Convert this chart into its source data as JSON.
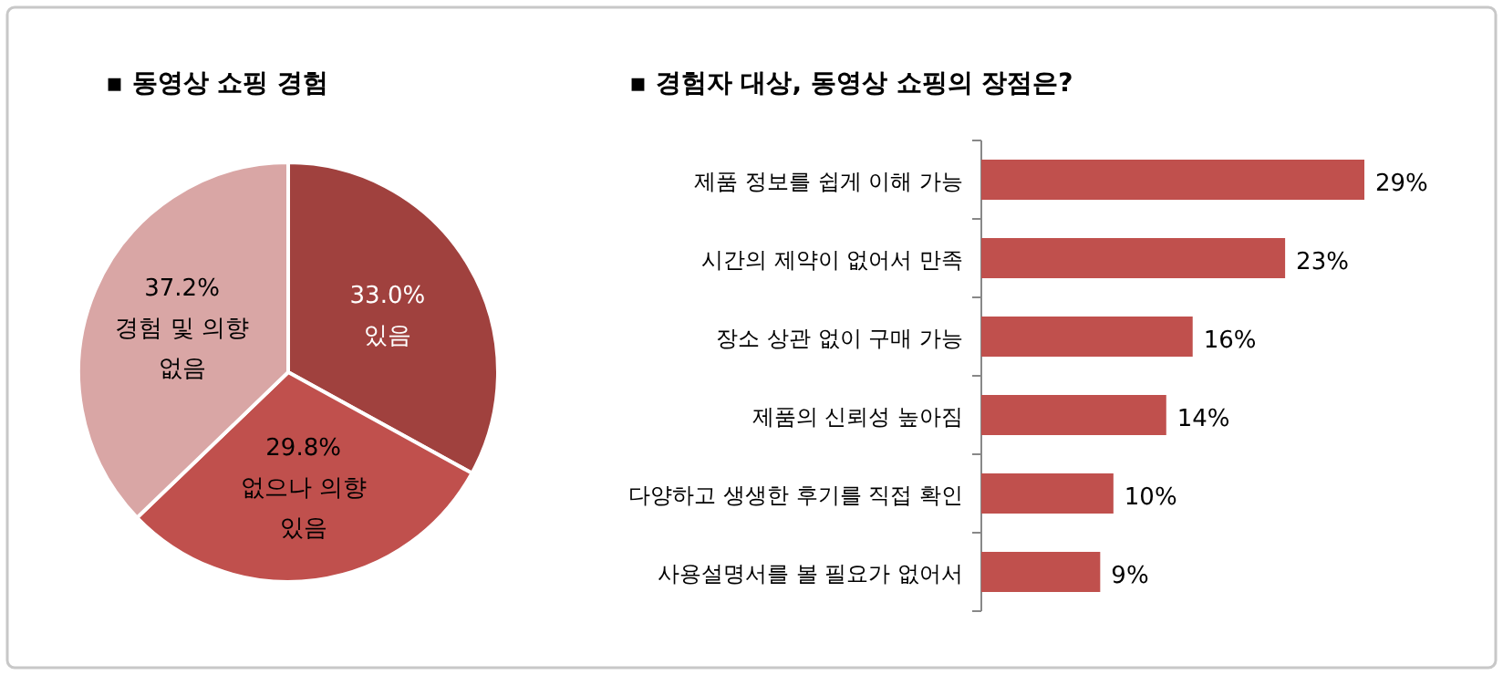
{
  "chart_data": [
    {
      "type": "pie",
      "title": "▪   동영상 쇼핑 경험",
      "categories": [
        "있음",
        "없으나 의향 있음",
        "경험 및 의향 없음"
      ],
      "values": [
        33.0,
        29.8,
        37.2
      ],
      "colors": [
        "#a0413e",
        "#c0504d",
        "#d9a6a5"
      ],
      "value_labels": [
        "33.0%",
        "29.8%",
        "37.2%"
      ]
    },
    {
      "type": "bar",
      "orientation": "horizontal",
      "title": "▪   경험자 대상, 동영상 쇼핑의 장점은?",
      "categories": [
        "제품 정보를 쉽게 이해 가능",
        "시간의 제약이 없어서 만족",
        "장소 상관 없이 구매 가능",
        "제품의 신뢰성 높아짐",
        "다양하고 생생한 후기를 직접 확인",
        "사용설명서를 볼 필요가 없어서"
      ],
      "values": [
        29,
        23,
        16,
        14,
        10,
        9
      ],
      "color": "#c0504d",
      "value_labels": [
        "29%",
        "23%",
        "16%",
        "14%",
        "10%",
        "9%"
      ]
    }
  ]
}
